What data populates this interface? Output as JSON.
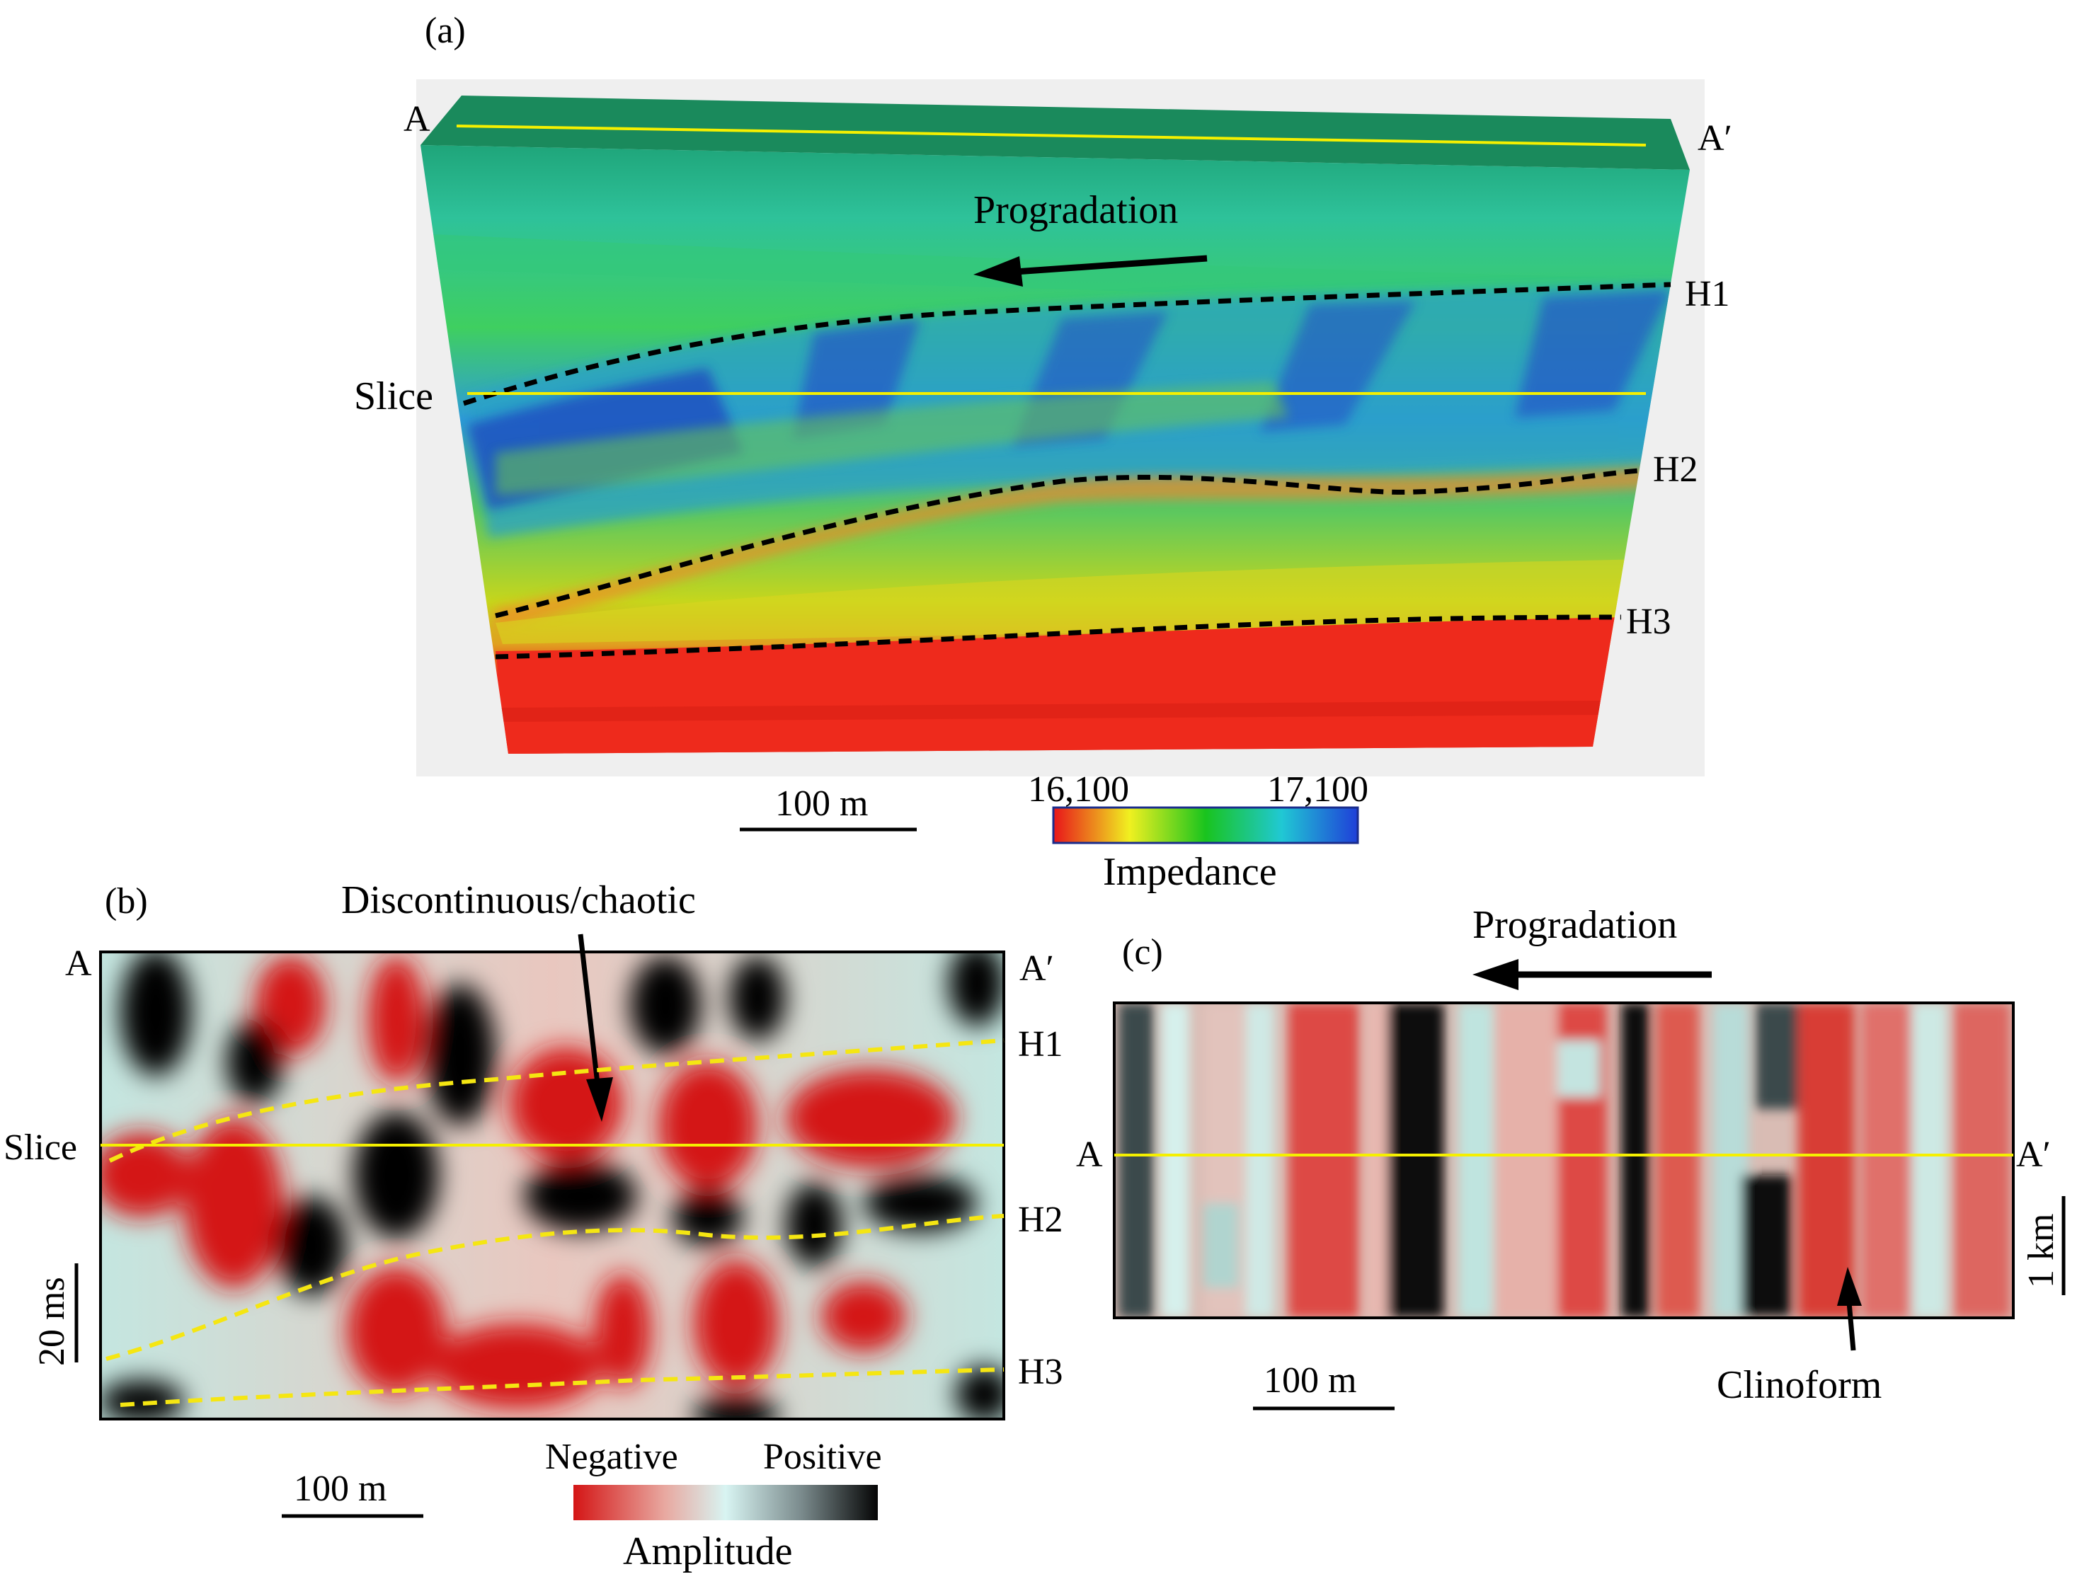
{
  "panel_a": {
    "label": "(a)",
    "endpoints": {
      "start": "A",
      "end": "A′"
    },
    "arrow_label": "Progradation",
    "slice_label": "Slice",
    "horizons": [
      "H1",
      "H2",
      "H3"
    ],
    "scale_bar": "100 m",
    "colorbar": {
      "title": "Impedance",
      "min_label": "16,100",
      "max_label": "17,100",
      "colors": [
        "#e8151a",
        "#f0f020",
        "#19c41e",
        "#20c8d4",
        "#1f3fd8"
      ]
    }
  },
  "panel_b": {
    "label": "(b)",
    "annotation": "Discontinuous/chaotic",
    "endpoints": {
      "start": "A",
      "end": "A′"
    },
    "slice_label": "Slice",
    "horizons": [
      "H1",
      "H2",
      "H3"
    ],
    "vertical_scale": "20 ms",
    "scale_bar": "100 m",
    "colorbar": {
      "title": "Amplitude",
      "negative_label": "Negative",
      "positive_label": "Positive",
      "colors": [
        "#d41515",
        "#e8a8a0",
        "#d8f4f2",
        "#7a8a8c",
        "#050505"
      ]
    }
  },
  "panel_c": {
    "label": "(c)",
    "arrow_label": "Progradation",
    "endpoints": {
      "start": "A",
      "end": "A′"
    },
    "vertical_scale": "1 km",
    "scale_bar": "100 m",
    "annotation": "Clinoform"
  },
  "colors": {
    "slice_line": "#f5f000",
    "horizon_b": "#f5e612",
    "horizon_a": "#000000"
  }
}
